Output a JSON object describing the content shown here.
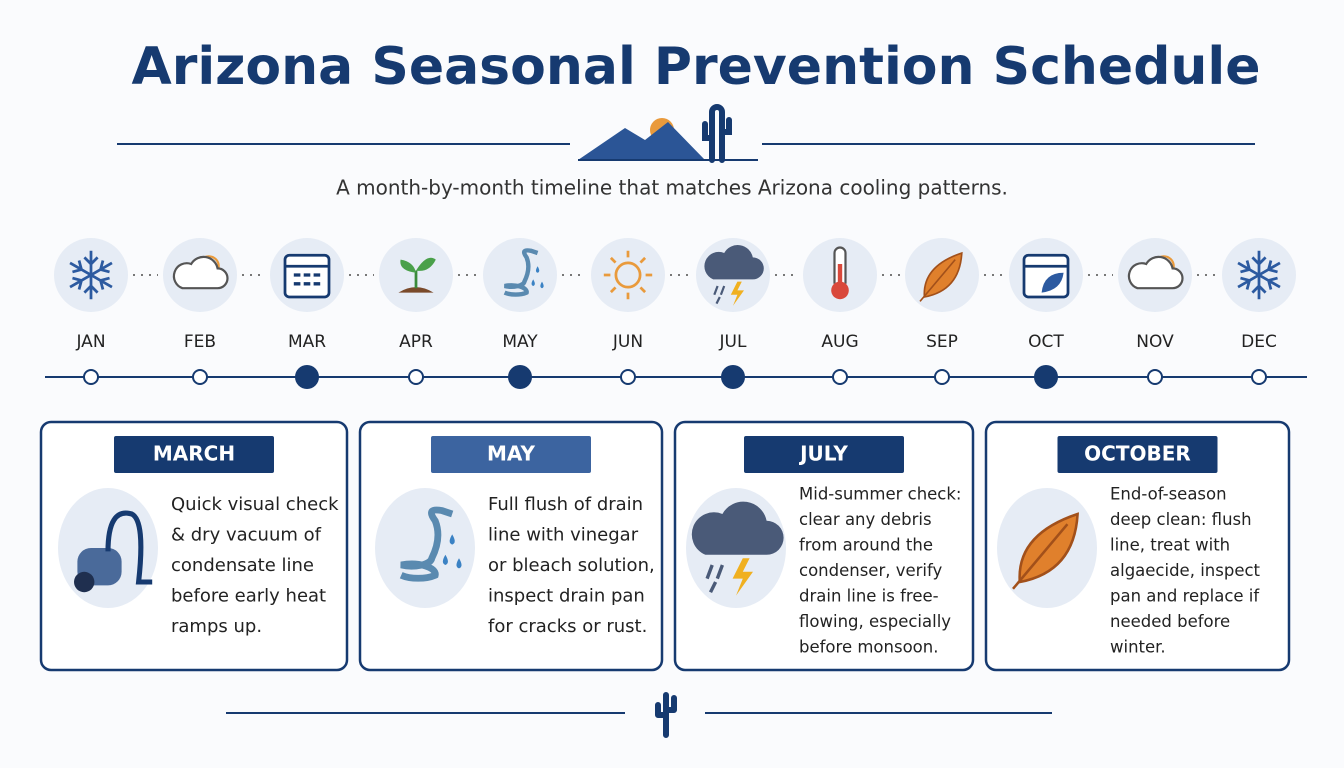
{
  "title": "Arizona Seasonal Prevention Schedule",
  "subtitle": "A month-by-month timeline that matches Arizona cooling patterns.",
  "months": [
    {
      "label": "JAN",
      "highlighted": false
    },
    {
      "label": "FEB",
      "highlighted": false
    },
    {
      "label": "MAR",
      "highlighted": true
    },
    {
      "label": "APR",
      "highlighted": false
    },
    {
      "label": "MAY",
      "highlighted": true
    },
    {
      "label": "JUN",
      "highlighted": false
    },
    {
      "label": "JUL",
      "highlighted": true
    },
    {
      "label": "AUG",
      "highlighted": false
    },
    {
      "label": "SEP",
      "highlighted": false
    },
    {
      "label": "OCT",
      "highlighted": true
    },
    {
      "label": "NOV",
      "highlighted": false
    },
    {
      "label": "DEC",
      "highlighted": false
    }
  ],
  "cards": [
    {
      "heading": "MARCH",
      "body_lines": [
        "Quick visual check",
        "& dry vacuum of",
        "condensate line",
        "before early heat",
        "ramps up."
      ]
    },
    {
      "heading": "MAY",
      "body_lines": [
        "Full flush of drain",
        "line with vinegar",
        "or bleach solution,",
        "inspect drain pan",
        "for cracks or rust."
      ]
    },
    {
      "heading": "JULY",
      "body_lines": [
        "Mid-summer check:",
        "clear any debris",
        "from around the",
        "condenser, verify",
        "drain line is free-",
        "flowing, especially",
        "before monsoon."
      ]
    },
    {
      "heading": "OCTOBER",
      "body_lines": [
        "End-of-season",
        "deep clean: flush",
        "line, treat with",
        "algaecide, inspect",
        "pan and replace if",
        "needed before",
        "winter."
      ]
    }
  ]
}
